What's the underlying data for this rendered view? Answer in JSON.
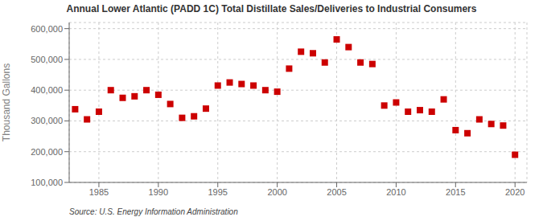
{
  "chart_data": {
    "type": "scatter",
    "title": "Annual Lower Atlantic (PADD 1C) Total Distillate Sales/Deliveries to Industrial Consumers",
    "ylabel": "Thousand Gallons",
    "annotations": [
      "Source: U.S. Energy Information Administration"
    ],
    "x": [
      1983,
      1984,
      1985,
      1986,
      1987,
      1988,
      1989,
      1990,
      1991,
      1992,
      1993,
      1994,
      1995,
      1996,
      1997,
      1998,
      1999,
      2000,
      2001,
      2002,
      2003,
      2004,
      2005,
      2006,
      2007,
      2008,
      2009,
      2010,
      2011,
      2012,
      2013,
      2014,
      2015,
      2016,
      2017,
      2018,
      2019,
      2020
    ],
    "values": [
      338000,
      305000,
      330000,
      400000,
      375000,
      380000,
      400000,
      385000,
      355000,
      310000,
      315000,
      340000,
      415000,
      425000,
      420000,
      415000,
      400000,
      395000,
      470000,
      525000,
      520000,
      490000,
      565000,
      540000,
      490000,
      485000,
      350000,
      360000,
      330000,
      335000,
      330000,
      370000,
      270000,
      260000,
      305000,
      290000,
      285000,
      190000
    ],
    "color": "#cc0000",
    "marker": "square",
    "xlim": [
      1982.5,
      2021
    ],
    "xticks": [
      1985,
      1990,
      1995,
      2000,
      2005,
      2010,
      2015,
      2020
    ],
    "ylim": [
      100000,
      620000
    ],
    "yticks": [
      {
        "value": 100000,
        "label": "100,000"
      },
      {
        "value": 200000,
        "label": "200,000"
      },
      {
        "value": 300000,
        "label": "300,000"
      },
      {
        "value": 400000,
        "label": "400,000"
      },
      {
        "value": 500000,
        "label": "500,000"
      },
      {
        "value": 600000,
        "label": "600,000"
      }
    ],
    "grid": true
  }
}
